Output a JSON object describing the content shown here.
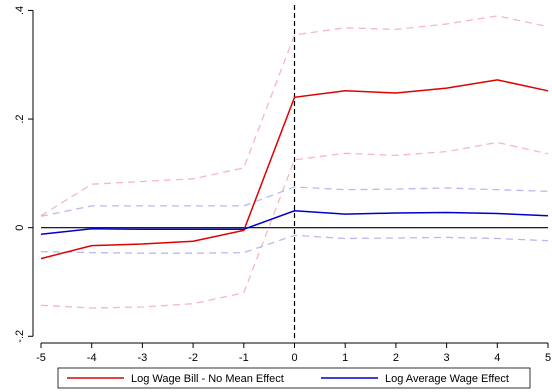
{
  "chart_data": {
    "type": "line",
    "x": [
      -5,
      -4,
      -3,
      -2,
      -1,
      0,
      1,
      2,
      3,
      4,
      5
    ],
    "xticks": [
      "-5",
      "-4",
      "-3",
      "-2",
      "-1",
      "0",
      "1",
      "2",
      "3",
      "4",
      "5"
    ],
    "yticks": [
      -0.2,
      0,
      0.2,
      0.4
    ],
    "ytick_labels": [
      "-.2",
      "0",
      ".2",
      ".4"
    ],
    "xlim": [
      -5,
      5
    ],
    "ylim": [
      -0.205,
      0.41
    ],
    "reference_lines": {
      "horizontal_y": 0,
      "vertical_x": 0
    },
    "grid": false,
    "legend_position": "bottom",
    "series": [
      {
        "name": "Log Wage Bill - No Mean Effect",
        "color": "#e00000",
        "values": [
          -0.057,
          -0.033,
          -0.03,
          -0.025,
          -0.005,
          0.24,
          0.252,
          0.248,
          0.257,
          0.272,
          0.252
        ]
      },
      {
        "name": "Log Average Wage Effect",
        "color": "#0000cc",
        "values": [
          -0.012,
          -0.002,
          -0.003,
          -0.003,
          -0.003,
          0.031,
          0.025,
          0.027,
          0.028,
          0.026,
          0.022
        ]
      }
    ],
    "confidence_bands": [
      {
        "color": "#f7b6c0",
        "upper": [
          0.022,
          0.08,
          0.085,
          0.09,
          0.11,
          0.355,
          0.368,
          0.365,
          0.375,
          0.39,
          0.37
        ],
        "lower": [
          -0.143,
          -0.148,
          -0.146,
          -0.14,
          -0.12,
          0.125,
          0.137,
          0.133,
          0.14,
          0.157,
          0.136
        ]
      },
      {
        "color": "#b9b9f2",
        "upper": [
          0.021,
          0.04,
          0.04,
          0.04,
          0.04,
          0.075,
          0.07,
          0.071,
          0.073,
          0.07,
          0.067
        ],
        "lower": [
          -0.044,
          -0.046,
          -0.047,
          -0.047,
          -0.046,
          -0.014,
          -0.02,
          -0.019,
          -0.018,
          -0.02,
          -0.024
        ]
      }
    ]
  }
}
